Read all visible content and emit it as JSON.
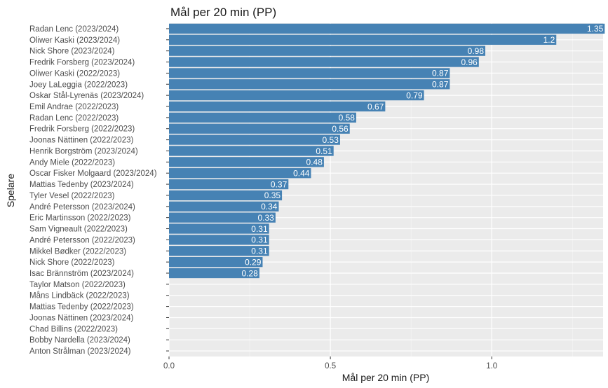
{
  "chart_data": {
    "type": "bar",
    "orientation": "horizontal",
    "title": "Mål per 20 min (PP)",
    "xlabel": "Mål per 20 min (PP)",
    "ylabel": "Spelare",
    "xlim": [
      0,
      1.35
    ],
    "x_ticks": [
      "0.0",
      "0.5",
      "1.0"
    ],
    "grid": true,
    "bar_color": "#4682b4",
    "panel_background": "#ebebeb",
    "categories": [
      "Radan Lenc (2023/2024)",
      "Oliwer Kaski (2023/2024)",
      "Nick Shore (2023/2024)",
      "Fredrik Forsberg (2023/2024)",
      "Oliwer Kaski (2022/2023)",
      "Joey LaLeggia (2022/2023)",
      "Oskar Stål-Lyrenäs (2023/2024)",
      "Emil Andrae (2022/2023)",
      "Radan Lenc (2022/2023)",
      "Fredrik Forsberg (2022/2023)",
      "Joonas Nättinen (2022/2023)",
      "Henrik Borgström (2023/2024)",
      "Andy Miele (2022/2023)",
      "Oscar Fisker Molgaard (2023/2024)",
      "Mattias Tedenby (2023/2024)",
      "Tyler Vesel (2022/2023)",
      "André Petersson (2023/2024)",
      "Eric Martinsson (2022/2023)",
      "Sam Vigneault (2022/2023)",
      "André Petersson (2022/2023)",
      "Mikkel Bødker (2022/2023)",
      "Nick Shore (2022/2023)",
      "Isac Brännström (2023/2024)",
      "Taylor Matson (2022/2023)",
      "Måns Lindbäck (2022/2023)",
      "Mattias Tedenby (2022/2023)",
      "Joonas Nättinen (2023/2024)",
      "Chad Billins (2022/2023)",
      "Bobby Nardella (2023/2024)",
      "Anton Strålman (2023/2024)"
    ],
    "values": [
      1.35,
      1.2,
      0.98,
      0.96,
      0.87,
      0.87,
      0.79,
      0.67,
      0.58,
      0.56,
      0.53,
      0.51,
      0.48,
      0.44,
      0.37,
      0.35,
      0.34,
      0.33,
      0.31,
      0.31,
      0.31,
      0.29,
      0.28,
      0,
      0,
      0,
      0,
      0,
      0,
      0
    ],
    "value_labels": [
      "1.35",
      "1.2",
      "0.98",
      "0.96",
      "0.87",
      "0.87",
      "0.79",
      "0.67",
      "0.58",
      "0.56",
      "0.53",
      "0.51",
      "0.48",
      "0.44",
      "0.37",
      "0.35",
      "0.34",
      "0.33",
      "0.31",
      "0.31",
      "0.31",
      "0.29",
      "0.28",
      "",
      "",
      "",
      "",
      "",
      "",
      ""
    ]
  }
}
